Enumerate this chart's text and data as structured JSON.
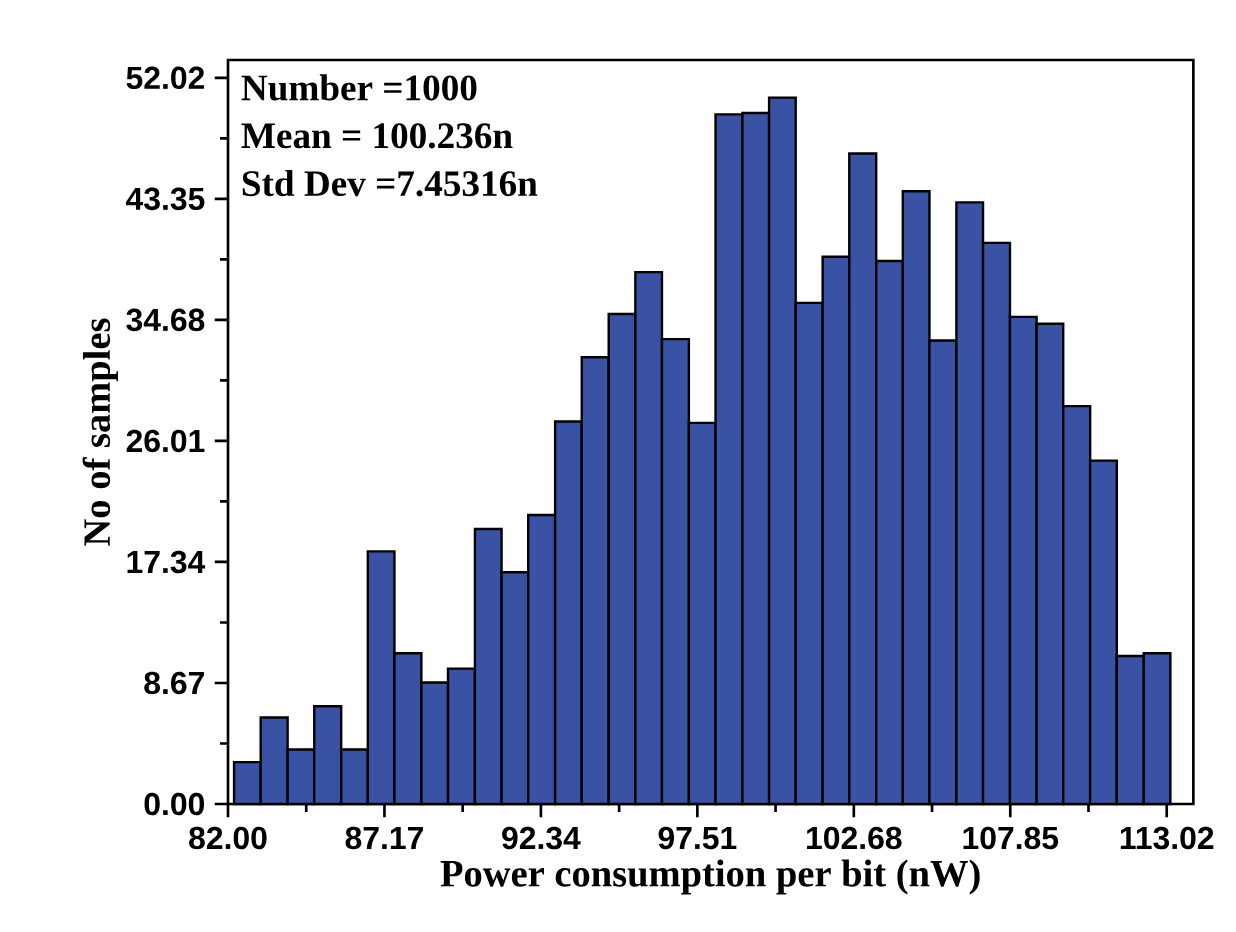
{
  "chart_data": {
    "type": "histogram",
    "xlabel": "Power consumption per bit (nW)",
    "ylabel": "No of samples",
    "annotations": [
      "Number =1000",
      "Mean = 100.236n",
      "Std Dev =7.45316n"
    ],
    "bins": [
      82.2,
      83.08,
      83.97,
      84.85,
      85.74,
      86.62,
      87.5,
      88.39,
      89.27,
      90.16,
      91.04,
      91.92,
      92.81,
      93.69,
      94.58,
      95.46,
      96.34,
      97.23,
      98.11,
      99.0,
      99.88,
      100.76,
      101.65,
      102.53,
      103.42,
      104.3,
      105.18,
      106.07,
      106.95,
      107.84,
      108.72,
      109.6,
      110.49,
      111.37,
      112.26,
      113.14
    ],
    "values": [
      3.0,
      6.2,
      3.9,
      7.0,
      3.9,
      18.1,
      10.8,
      8.7,
      9.7,
      19.7,
      16.6,
      20.7,
      27.4,
      32.0,
      35.1,
      38.1,
      33.3,
      27.3,
      49.4,
      49.5,
      50.6,
      35.9,
      39.2,
      46.6,
      38.9,
      43.9,
      33.2,
      43.1,
      40.2,
      34.9,
      34.4,
      28.5,
      24.6,
      10.6,
      10.8
    ],
    "color": "#3a52a3",
    "xlim": [
      82,
      113.9
    ],
    "ylim": [
      0,
      53.3
    ],
    "xticks": [
      {
        "value": 82,
        "label": "82.00"
      },
      87.17,
      92.34,
      97.51,
      102.68,
      107.85,
      113.02
    ],
    "yticks": [
      {
        "value": 0,
        "label": "0.00"
      },
      8.67,
      17.34,
      26.01,
      34.68,
      43.35,
      52.02
    ]
  }
}
